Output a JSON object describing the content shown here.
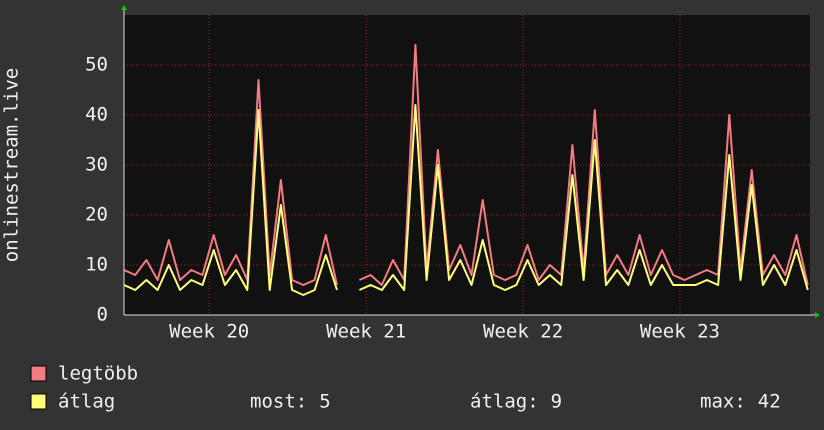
{
  "chart_data": {
    "type": "line",
    "ylabel": "onlinestream.live",
    "x": [
      0,
      0.5,
      1,
      1.5,
      2,
      2.5,
      3,
      3.5,
      4,
      4.5,
      5,
      5.5,
      6,
      6.5,
      7,
      7.5,
      8,
      8.5,
      9,
      9.5,
      10,
      10.5,
      11,
      11.5,
      12,
      12.5,
      13,
      13.5,
      14,
      14.5,
      15,
      15.5,
      16,
      16.5,
      17,
      17.5,
      18,
      18.5,
      19,
      19.5,
      20,
      20.5,
      21,
      21.5,
      22,
      22.5,
      23,
      23.5,
      24,
      24.5,
      25,
      25.5,
      26,
      26.5,
      27,
      27.5,
      28,
      28.5,
      29,
      29.5,
      30,
      30.5
    ],
    "series": [
      {
        "name": "legtöbb",
        "color": "#f47b84",
        "values": [
          9,
          8,
          11,
          7,
          15,
          7,
          9,
          8,
          16,
          8,
          12,
          7,
          47,
          8,
          27,
          7,
          6,
          7,
          16,
          6,
          null,
          7,
          8,
          6,
          11,
          7,
          54,
          9,
          33,
          9,
          14,
          8,
          23,
          8,
          7,
          8,
          14,
          7,
          10,
          8,
          34,
          9,
          41,
          8,
          12,
          8,
          16,
          8,
          13,
          8,
          7,
          8,
          9,
          8,
          40,
          9,
          29,
          8,
          12,
          8,
          16,
          6
        ]
      },
      {
        "name": "átlag",
        "color": "#ffff7a",
        "values": [
          6,
          5,
          7,
          5,
          10,
          5,
          7,
          6,
          13,
          6,
          9,
          5,
          41,
          5,
          22,
          5,
          4,
          5,
          12,
          5,
          null,
          5,
          6,
          5,
          8,
          5,
          42,
          7,
          30,
          7,
          11,
          6,
          15,
          6,
          5,
          6,
          11,
          6,
          8,
          6,
          28,
          7,
          35,
          6,
          9,
          6,
          13,
          6,
          10,
          6,
          6,
          6,
          7,
          6,
          32,
          7,
          26,
          6,
          10,
          6,
          13,
          5
        ]
      }
    ],
    "xlim": [
      0,
      30.6
    ],
    "ylim": [
      0,
      60
    ],
    "xticks": [
      {
        "value": 3.8,
        "label": "Week 20"
      },
      {
        "value": 10.8,
        "label": "Week 21"
      },
      {
        "value": 17.8,
        "label": "Week 22"
      },
      {
        "value": 24.8,
        "label": "Week 23"
      }
    ],
    "yticks": [
      0,
      10,
      20,
      30,
      40,
      50
    ],
    "grid": true,
    "stats": [
      {
        "label": "most:",
        "value": 5
      },
      {
        "label": "átlag:",
        "value": 9
      },
      {
        "label": "max:",
        "value": 42
      }
    ]
  }
}
